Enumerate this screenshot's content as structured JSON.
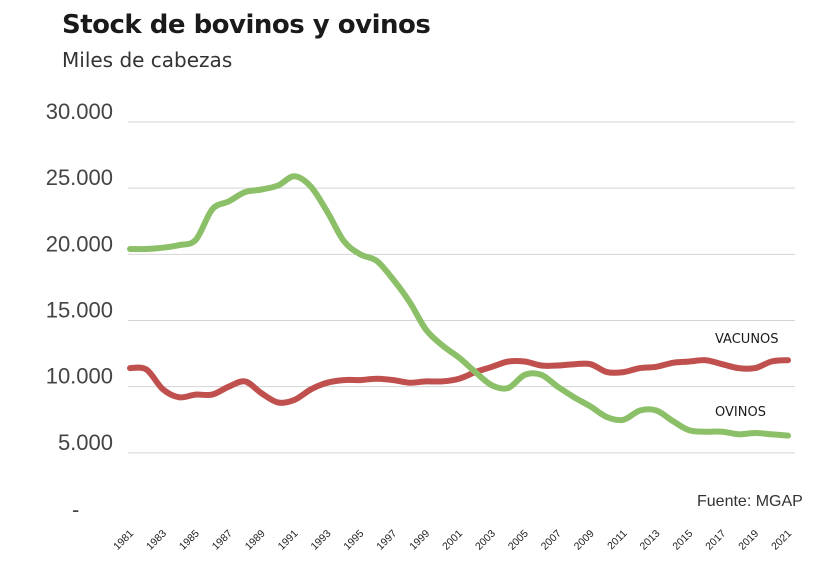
{
  "chart_data": {
    "type": "line",
    "title": "Stock de bovinos y ovinos",
    "subtitle": "Miles de cabezas",
    "source": "Fuente: MGAP",
    "ylim": [
      0,
      30000
    ],
    "y_ticks": [
      0,
      5000,
      10000,
      15000,
      20000,
      25000,
      30000
    ],
    "y_tick_labels": [
      "-",
      "5.000",
      "10.000",
      "15.000",
      "20.000",
      "25.000",
      "30.000"
    ],
    "x_ticks": [
      "1981",
      "1983",
      "1985",
      "1987",
      "1989",
      "1991",
      "1993",
      "1995",
      "1997",
      "1999",
      "2001",
      "2003",
      "2005",
      "2007",
      "2009",
      "2011",
      "2013",
      "2015",
      "2017",
      "2019",
      "2021"
    ],
    "grid": true,
    "x": [
      1981,
      1982,
      1983,
      1984,
      1985,
      1986,
      1987,
      1988,
      1989,
      1990,
      1991,
      1992,
      1993,
      1994,
      1995,
      1996,
      1997,
      1998,
      1999,
      2000,
      2001,
      2002,
      2003,
      2004,
      2005,
      2006,
      2007,
      2008,
      2009,
      2010,
      2011,
      2012,
      2013,
      2014,
      2015,
      2016,
      2017,
      2018,
      2019,
      2020,
      2021
    ],
    "series": [
      {
        "name": "VACUNOS",
        "color": "#c0504d",
        "values": [
          11400,
          11300,
          9800,
          9200,
          9400,
          9400,
          10000,
          10400,
          9500,
          8800,
          9000,
          9800,
          10300,
          10500,
          10500,
          10600,
          10500,
          10300,
          10400,
          10400,
          10600,
          11100,
          11500,
          11900,
          11900,
          11600,
          11600,
          11700,
          11700,
          11100,
          11100,
          11400,
          11500,
          11800,
          11900,
          12000,
          11700,
          11400,
          11400,
          11900,
          12000
        ]
      },
      {
        "name": "OVINOS",
        "color": "#8cc068",
        "values": [
          20400,
          20400,
          20500,
          20700,
          21100,
          23400,
          24000,
          24700,
          24900,
          25200,
          25900,
          25100,
          23200,
          21000,
          20000,
          19500,
          18100,
          16400,
          14300,
          13100,
          12200,
          11100,
          10100,
          9900,
          10900,
          10900,
          10000,
          9200,
          8500,
          7700,
          7500,
          8200,
          8200,
          7400,
          6700,
          6600,
          6600,
          6400,
          6500,
          6400,
          6300
        ]
      }
    ]
  }
}
